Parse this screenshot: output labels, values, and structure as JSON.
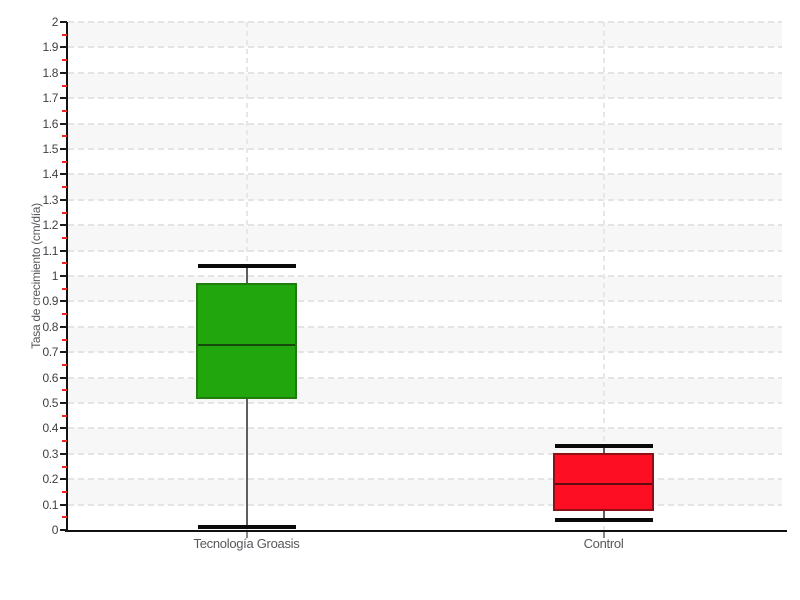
{
  "chart_data": {
    "type": "boxplot",
    "title": "",
    "xlabel": "",
    "ylabel": "Tasa de crecimiento (cm/día)",
    "ylim": [
      0,
      2
    ],
    "ytick_step": 0.1,
    "yminor_tick_step": 0.05,
    "ytick_labels": [
      "0",
      "0.1",
      "0.2",
      "0.3",
      "0.4",
      "0.5",
      "0.6",
      "0.7",
      "0.8",
      "0.9",
      "1",
      "1.1",
      "1.2",
      "1.3",
      "1.4",
      "1.5",
      "1.6",
      "1.7",
      "1.8",
      "1.9",
      "2"
    ],
    "grid": "dashed horizontal lines at each 0.1; dashed vertical line at each category center; alternating background bands",
    "legend": "none",
    "categories": [
      "Tecnología Groasis",
      "Control"
    ],
    "series": [
      {
        "name": "Tecnología Groasis",
        "whisker_low": 0.01,
        "q1": 0.52,
        "median": 0.73,
        "q3": 0.97,
        "whisker_high": 1.04,
        "fill": "#22a60e",
        "border": "#1f7c0d",
        "median_color": "#16490a"
      },
      {
        "name": "Control",
        "whisker_low": 0.04,
        "q1": 0.08,
        "median": 0.18,
        "q3": 0.3,
        "whisker_high": 0.33,
        "fill": "#fe0e22",
        "border": "#8e1016",
        "median_color": "#5d0a10"
      }
    ],
    "colors": {
      "band_gray": "#f7f7f7",
      "band_white": "#ffffff",
      "gridline": "#e4e4e4",
      "axis": "#111111",
      "major_tick": "#1a1a1a",
      "minor_tick": "#e8281e",
      "tick_label": "#3d3f42",
      "category_label": "#55585c",
      "whisker": "#5e5e5e",
      "whisker_cap": "#0a0a0a"
    }
  }
}
